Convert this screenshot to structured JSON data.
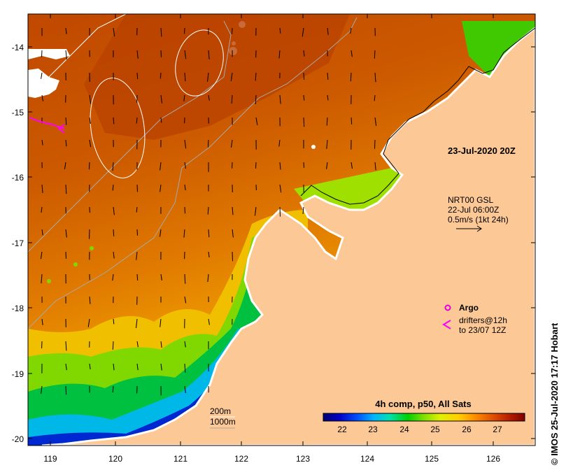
{
  "map": {
    "timestamp": "23-Jul-2020 20Z",
    "current_source": {
      "line1": "NRT00 GSL",
      "line2": "22-Jul 06:00Z",
      "line3": "0.5m/s (1kt 24h)"
    },
    "legend": {
      "argo_label": "Argo",
      "drifters_line1": "drifters@12h",
      "drifters_line2": "to 23/07 12Z",
      "argo_color": "#e000e0",
      "drifter_color": "#ff00ff"
    },
    "isobaths": {
      "label_200": "200m",
      "label_1000": "1000m",
      "color_200": "#ffffff",
      "color_1000": "#a8a8a8"
    },
    "colorbar": {
      "title": "4h comp, p50, All Sats",
      "tick_labels": [
        "22",
        "23",
        "24",
        "25",
        "26",
        "27"
      ],
      "stops": [
        "#000070",
        "#0000c8",
        "#0050ff",
        "#00b4ff",
        "#00e0b0",
        "#00d000",
        "#80e000",
        "#e0f000",
        "#ffd000",
        "#ff9000",
        "#e05000",
        "#b82000",
        "#800000"
      ]
    },
    "axes": {
      "x_ticks": [
        "119",
        "120",
        "121",
        "122",
        "123",
        "124",
        "125",
        "126"
      ],
      "y_ticks": [
        "-14",
        "-15",
        "-16",
        "-17",
        "-18",
        "-19",
        "-20"
      ]
    },
    "credit": "© IMOS 25-Jul-2020 17:17 Hobart",
    "colors": {
      "land": "#fcc896",
      "sst_warm": "#c85000",
      "sst_mid": "#e88000",
      "coast_outline": "#000000"
    }
  }
}
